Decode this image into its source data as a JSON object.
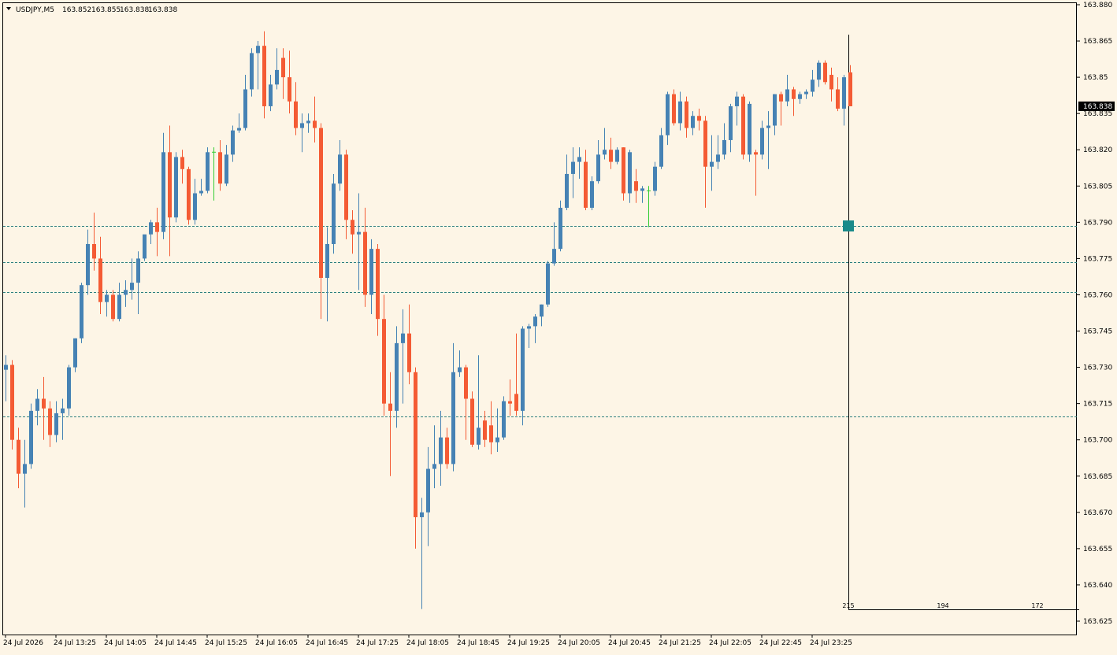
{
  "chart_data": {
    "type": "candlestick",
    "header": {
      "symbol": "USDJPY,M5",
      "open": 163.852,
      "high": 163.855,
      "low": 163.838,
      "close": 163.838
    },
    "bull_color": "#4682b4",
    "bear_color": "#f45b34",
    "doji_color": "#32cd32",
    "line_color": "#2f7f7f",
    "ylim": [
      163.625,
      163.88
    ],
    "yticks": [
      {
        "value": 163.88,
        "label": "163.880"
      },
      163.865,
      163.85,
      163.835,
      {
        "value": 163.82,
        "label": "163.820"
      },
      163.805,
      {
        "value": 163.79,
        "label": "163.790"
      },
      163.775,
      {
        "value": 163.76,
        "label": "163.760"
      },
      163.745,
      {
        "value": 163.73,
        "label": "163.730"
      },
      163.715,
      {
        "value": 163.7,
        "label": "163.700"
      },
      163.685,
      {
        "value": 163.67,
        "label": "163.670"
      },
      163.655,
      {
        "value": 163.64,
        "label": "163.640"
      },
      163.625
    ],
    "current_price": 163.838,
    "hlines": [
      163.7885,
      163.7735,
      163.7611,
      163.7097
    ],
    "profile_labels": [
      215,
      194,
      172
    ],
    "categories": [
      "24 Jul 2026",
      null,
      null,
      null,
      null,
      null,
      null,
      null,
      "24 Jul 13:25",
      null,
      null,
      null,
      null,
      null,
      null,
      null,
      "24 Jul 14:05",
      null,
      null,
      null,
      null,
      null,
      null,
      null,
      "24 Jul 14:45",
      null,
      null,
      null,
      null,
      null,
      null,
      null,
      "24 Jul 15:25",
      null,
      null,
      null,
      null,
      null,
      null,
      null,
      "24 Jul 16:05",
      null,
      null,
      null,
      null,
      null,
      null,
      null,
      "24 Jul 16:45",
      null,
      null,
      null,
      null,
      null,
      null,
      null,
      "24 Jul 17:25",
      null,
      null,
      null,
      null,
      null,
      null,
      null,
      "24 Jul 18:05",
      null,
      null,
      null,
      null,
      null,
      null,
      null,
      "24 Jul 18:45",
      null,
      null,
      null,
      null,
      null,
      null,
      null,
      "24 Jul 19:25",
      null,
      null,
      null,
      null,
      null,
      null,
      null,
      "24 Jul 20:05",
      null,
      null,
      null,
      null,
      null,
      null,
      null,
      "24 Jul 20:45",
      null,
      null,
      null,
      null,
      null,
      null,
      null,
      "24 Jul 21:25",
      null,
      null,
      null,
      null,
      null,
      null,
      null,
      "24 Jul 22:05",
      null,
      null,
      null,
      null,
      null,
      null,
      null,
      "24 Jul 22:45",
      null,
      null,
      null,
      null,
      null,
      null,
      null,
      "24 Jul 23:25",
      null,
      null,
      null,
      null,
      null,
      null
    ],
    "ohlc": [
      [
        163.729,
        163.735,
        163.716,
        163.731
      ],
      [
        163.731,
        163.733,
        163.696,
        163.7
      ],
      [
        163.7,
        163.705,
        163.68,
        163.686
      ],
      [
        163.686,
        163.7,
        163.672,
        163.69
      ],
      [
        163.69,
        163.715,
        163.688,
        163.712
      ],
      [
        163.712,
        163.721,
        163.706,
        163.717
      ],
      [
        163.717,
        163.726,
        163.7,
        163.713
      ],
      [
        163.713,
        163.716,
        163.697,
        163.702
      ],
      [
        163.702,
        163.716,
        163.699,
        163.711
      ],
      [
        163.711,
        163.717,
        163.7,
        163.713
      ],
      [
        163.713,
        163.731,
        163.71,
        163.73
      ],
      [
        163.73,
        163.742,
        163.728,
        163.742
      ],
      [
        163.742,
        163.765,
        163.74,
        163.764
      ],
      [
        163.764,
        163.787,
        163.76,
        163.781
      ],
      [
        163.781,
        163.794,
        163.77,
        163.775
      ],
      [
        163.775,
        163.784,
        163.752,
        163.757
      ],
      [
        163.757,
        163.762,
        163.751,
        163.76
      ],
      [
        163.76,
        163.762,
        163.749,
        163.75
      ],
      [
        163.75,
        163.765,
        163.749,
        163.76
      ],
      [
        163.76,
        163.766,
        163.755,
        163.762
      ],
      [
        163.762,
        163.775,
        163.758,
        163.765
      ],
      [
        163.765,
        163.778,
        163.752,
        163.775
      ],
      [
        163.775,
        163.784,
        163.774,
        163.785
      ],
      [
        163.785,
        163.791,
        163.781,
        163.79
      ],
      [
        163.79,
        163.796,
        163.776,
        163.786
      ],
      [
        163.786,
        163.827,
        163.783,
        163.819
      ],
      [
        163.819,
        163.83,
        163.776,
        163.792
      ],
      [
        163.792,
        163.819,
        163.79,
        163.817
      ],
      [
        163.817,
        163.82,
        163.806,
        163.812
      ],
      [
        163.812,
        163.813,
        163.789,
        163.791
      ],
      [
        163.791,
        163.808,
        163.789,
        163.802
      ],
      [
        163.802,
        163.808,
        163.801,
        163.803
      ],
      [
        163.803,
        163.821,
        163.802,
        163.819
      ],
      [
        163.819,
        163.821,
        163.799,
        163.819
      ],
      [
        163.819,
        163.824,
        163.803,
        163.806
      ],
      [
        163.806,
        163.822,
        163.805,
        163.818
      ],
      [
        163.818,
        163.83,
        163.815,
        163.828
      ],
      [
        163.828,
        163.835,
        163.827,
        163.829
      ],
      [
        163.829,
        163.851,
        163.828,
        163.845
      ],
      [
        163.845,
        163.862,
        163.842,
        163.86
      ],
      [
        163.86,
        163.865,
        163.845,
        163.863
      ],
      [
        163.863,
        163.869,
        163.833,
        163.838
      ],
      [
        163.838,
        163.851,
        163.836,
        163.847
      ],
      [
        163.847,
        163.862,
        163.845,
        163.853
      ],
      [
        163.858,
        163.862,
        163.841,
        163.85
      ],
      [
        163.85,
        163.861,
        163.835,
        163.84
      ],
      [
        163.84,
        163.848,
        163.826,
        163.829
      ],
      [
        163.829,
        163.835,
        163.819,
        163.831
      ],
      [
        163.831,
        163.835,
        163.827,
        163.832
      ],
      [
        163.832,
        163.842,
        163.823,
        163.829
      ],
      [
        163.829,
        163.831,
        163.75,
        163.767
      ],
      [
        163.767,
        163.788,
        163.749,
        163.781
      ],
      [
        163.781,
        163.81,
        163.777,
        163.806
      ],
      [
        163.806,
        163.824,
        163.803,
        163.818
      ],
      [
        163.818,
        163.82,
        163.783,
        163.791
      ],
      [
        163.791,
        163.795,
        163.777,
        163.785
      ],
      [
        163.785,
        163.802,
        163.762,
        163.786
      ],
      [
        163.786,
        163.796,
        163.755,
        163.76
      ],
      [
        163.76,
        163.783,
        163.752,
        163.779
      ],
      [
        163.779,
        163.781,
        163.743,
        163.75
      ],
      [
        163.75,
        163.76,
        163.71,
        163.715
      ],
      [
        163.715,
        163.728,
        163.685,
        163.712
      ],
      [
        163.712,
        163.747,
        163.705,
        163.74
      ],
      [
        163.74,
        163.754,
        163.715,
        163.744
      ],
      [
        163.744,
        163.756,
        163.723,
        163.728
      ],
      [
        163.728,
        163.73,
        163.655,
        163.668
      ],
      [
        163.668,
        163.676,
        163.63,
        163.67
      ],
      [
        163.67,
        163.697,
        163.656,
        163.688
      ],
      [
        163.688,
        163.706,
        163.68,
        163.69
      ],
      [
        163.69,
        163.712,
        163.681,
        163.701
      ],
      [
        163.701,
        163.705,
        163.688,
        163.69
      ],
      [
        163.69,
        163.74,
        163.687,
        163.728
      ],
      [
        163.728,
        163.737,
        163.726,
        163.73
      ],
      [
        163.73,
        163.731,
        163.7,
        163.717
      ],
      [
        163.717,
        163.72,
        163.697,
        163.698
      ],
      [
        163.698,
        163.735,
        163.696,
        163.705
      ],
      [
        163.708,
        163.712,
        163.697,
        163.7
      ],
      [
        163.706,
        163.716,
        163.694,
        163.699
      ],
      [
        163.699,
        163.713,
        163.695,
        163.701
      ],
      [
        163.701,
        163.718,
        163.7,
        163.716
      ],
      [
        163.716,
        163.725,
        163.71,
        163.715
      ],
      [
        163.719,
        163.744,
        163.71,
        163.712
      ],
      [
        163.712,
        163.747,
        163.706,
        163.746
      ],
      [
        163.746,
        163.748,
        163.738,
        163.747
      ],
      [
        163.747,
        163.752,
        163.74,
        163.751
      ],
      [
        163.751,
        163.756,
        163.747,
        163.756
      ],
      [
        163.756,
        163.774,
        163.755,
        163.773
      ],
      [
        163.773,
        163.79,
        163.772,
        163.779
      ],
      [
        163.779,
        163.799,
        163.778,
        163.796
      ],
      [
        163.796,
        163.818,
        163.795,
        163.81
      ],
      [
        163.81,
        163.821,
        163.8,
        163.815
      ],
      [
        163.815,
        163.821,
        163.808,
        163.817
      ],
      [
        163.815,
        163.82,
        163.795,
        163.796
      ],
      [
        163.796,
        163.809,
        163.795,
        163.807
      ],
      [
        163.807,
        163.824,
        163.806,
        163.818
      ],
      [
        163.818,
        163.829,
        163.816,
        163.82
      ],
      [
        163.82,
        163.825,
        163.812,
        163.815
      ],
      [
        163.815,
        163.821,
        163.814,
        163.82
      ],
      [
        163.821,
        163.821,
        163.799,
        163.802
      ],
      [
        163.802,
        163.82,
        163.798,
        163.819
      ],
      [
        163.807,
        163.812,
        163.798,
        163.803
      ],
      [
        163.803,
        163.805,
        163.798,
        163.804
      ],
      [
        163.803,
        163.805,
        163.788,
        163.803
      ],
      [
        163.803,
        163.815,
        163.801,
        163.813
      ],
      [
        163.813,
        163.829,
        163.812,
        163.826
      ],
      [
        163.826,
        163.844,
        163.822,
        163.843
      ],
      [
        163.843,
        163.845,
        163.83,
        163.831
      ],
      [
        163.831,
        163.844,
        163.828,
        163.84
      ],
      [
        163.84,
        163.842,
        163.825,
        163.829
      ],
      [
        163.829,
        163.836,
        163.826,
        163.834
      ],
      [
        163.834,
        163.837,
        163.828,
        163.832
      ],
      [
        163.832,
        163.834,
        163.796,
        163.813
      ],
      [
        163.813,
        163.826,
        163.803,
        163.815
      ],
      [
        163.815,
        163.826,
        163.812,
        163.818
      ],
      [
        163.818,
        163.831,
        163.816,
        163.824
      ],
      [
        163.824,
        163.839,
        163.819,
        163.838
      ],
      [
        163.838,
        163.844,
        163.83,
        163.842
      ],
      [
        163.842,
        163.843,
        163.816,
        163.818
      ],
      [
        163.818,
        163.84,
        163.815,
        163.839
      ],
      [
        163.819,
        163.82,
        163.801,
        163.818
      ],
      [
        163.818,
        163.832,
        163.816,
        163.829
      ],
      [
        163.829,
        163.836,
        163.812,
        163.83
      ],
      [
        163.83,
        163.843,
        163.826,
        163.843
      ],
      [
        163.843,
        163.844,
        163.83,
        163.84
      ],
      [
        163.84,
        163.851,
        163.838,
        163.845
      ],
      [
        163.845,
        163.846,
        163.834,
        163.841
      ],
      [
        163.841,
        163.844,
        163.839,
        163.843
      ],
      [
        163.843,
        163.845,
        163.841,
        163.844
      ],
      [
        163.844,
        163.853,
        163.842,
        163.849
      ],
      [
        163.849,
        163.857,
        163.846,
        163.856
      ],
      [
        163.856,
        163.857,
        163.847,
        163.848
      ],
      [
        163.851,
        163.854,
        163.84,
        163.845
      ],
      [
        163.845,
        163.85,
        163.836,
        163.837
      ],
      [
        163.837,
        163.851,
        163.83,
        163.85
      ],
      [
        163.852,
        163.855,
        163.838,
        163.838
      ]
    ]
  }
}
